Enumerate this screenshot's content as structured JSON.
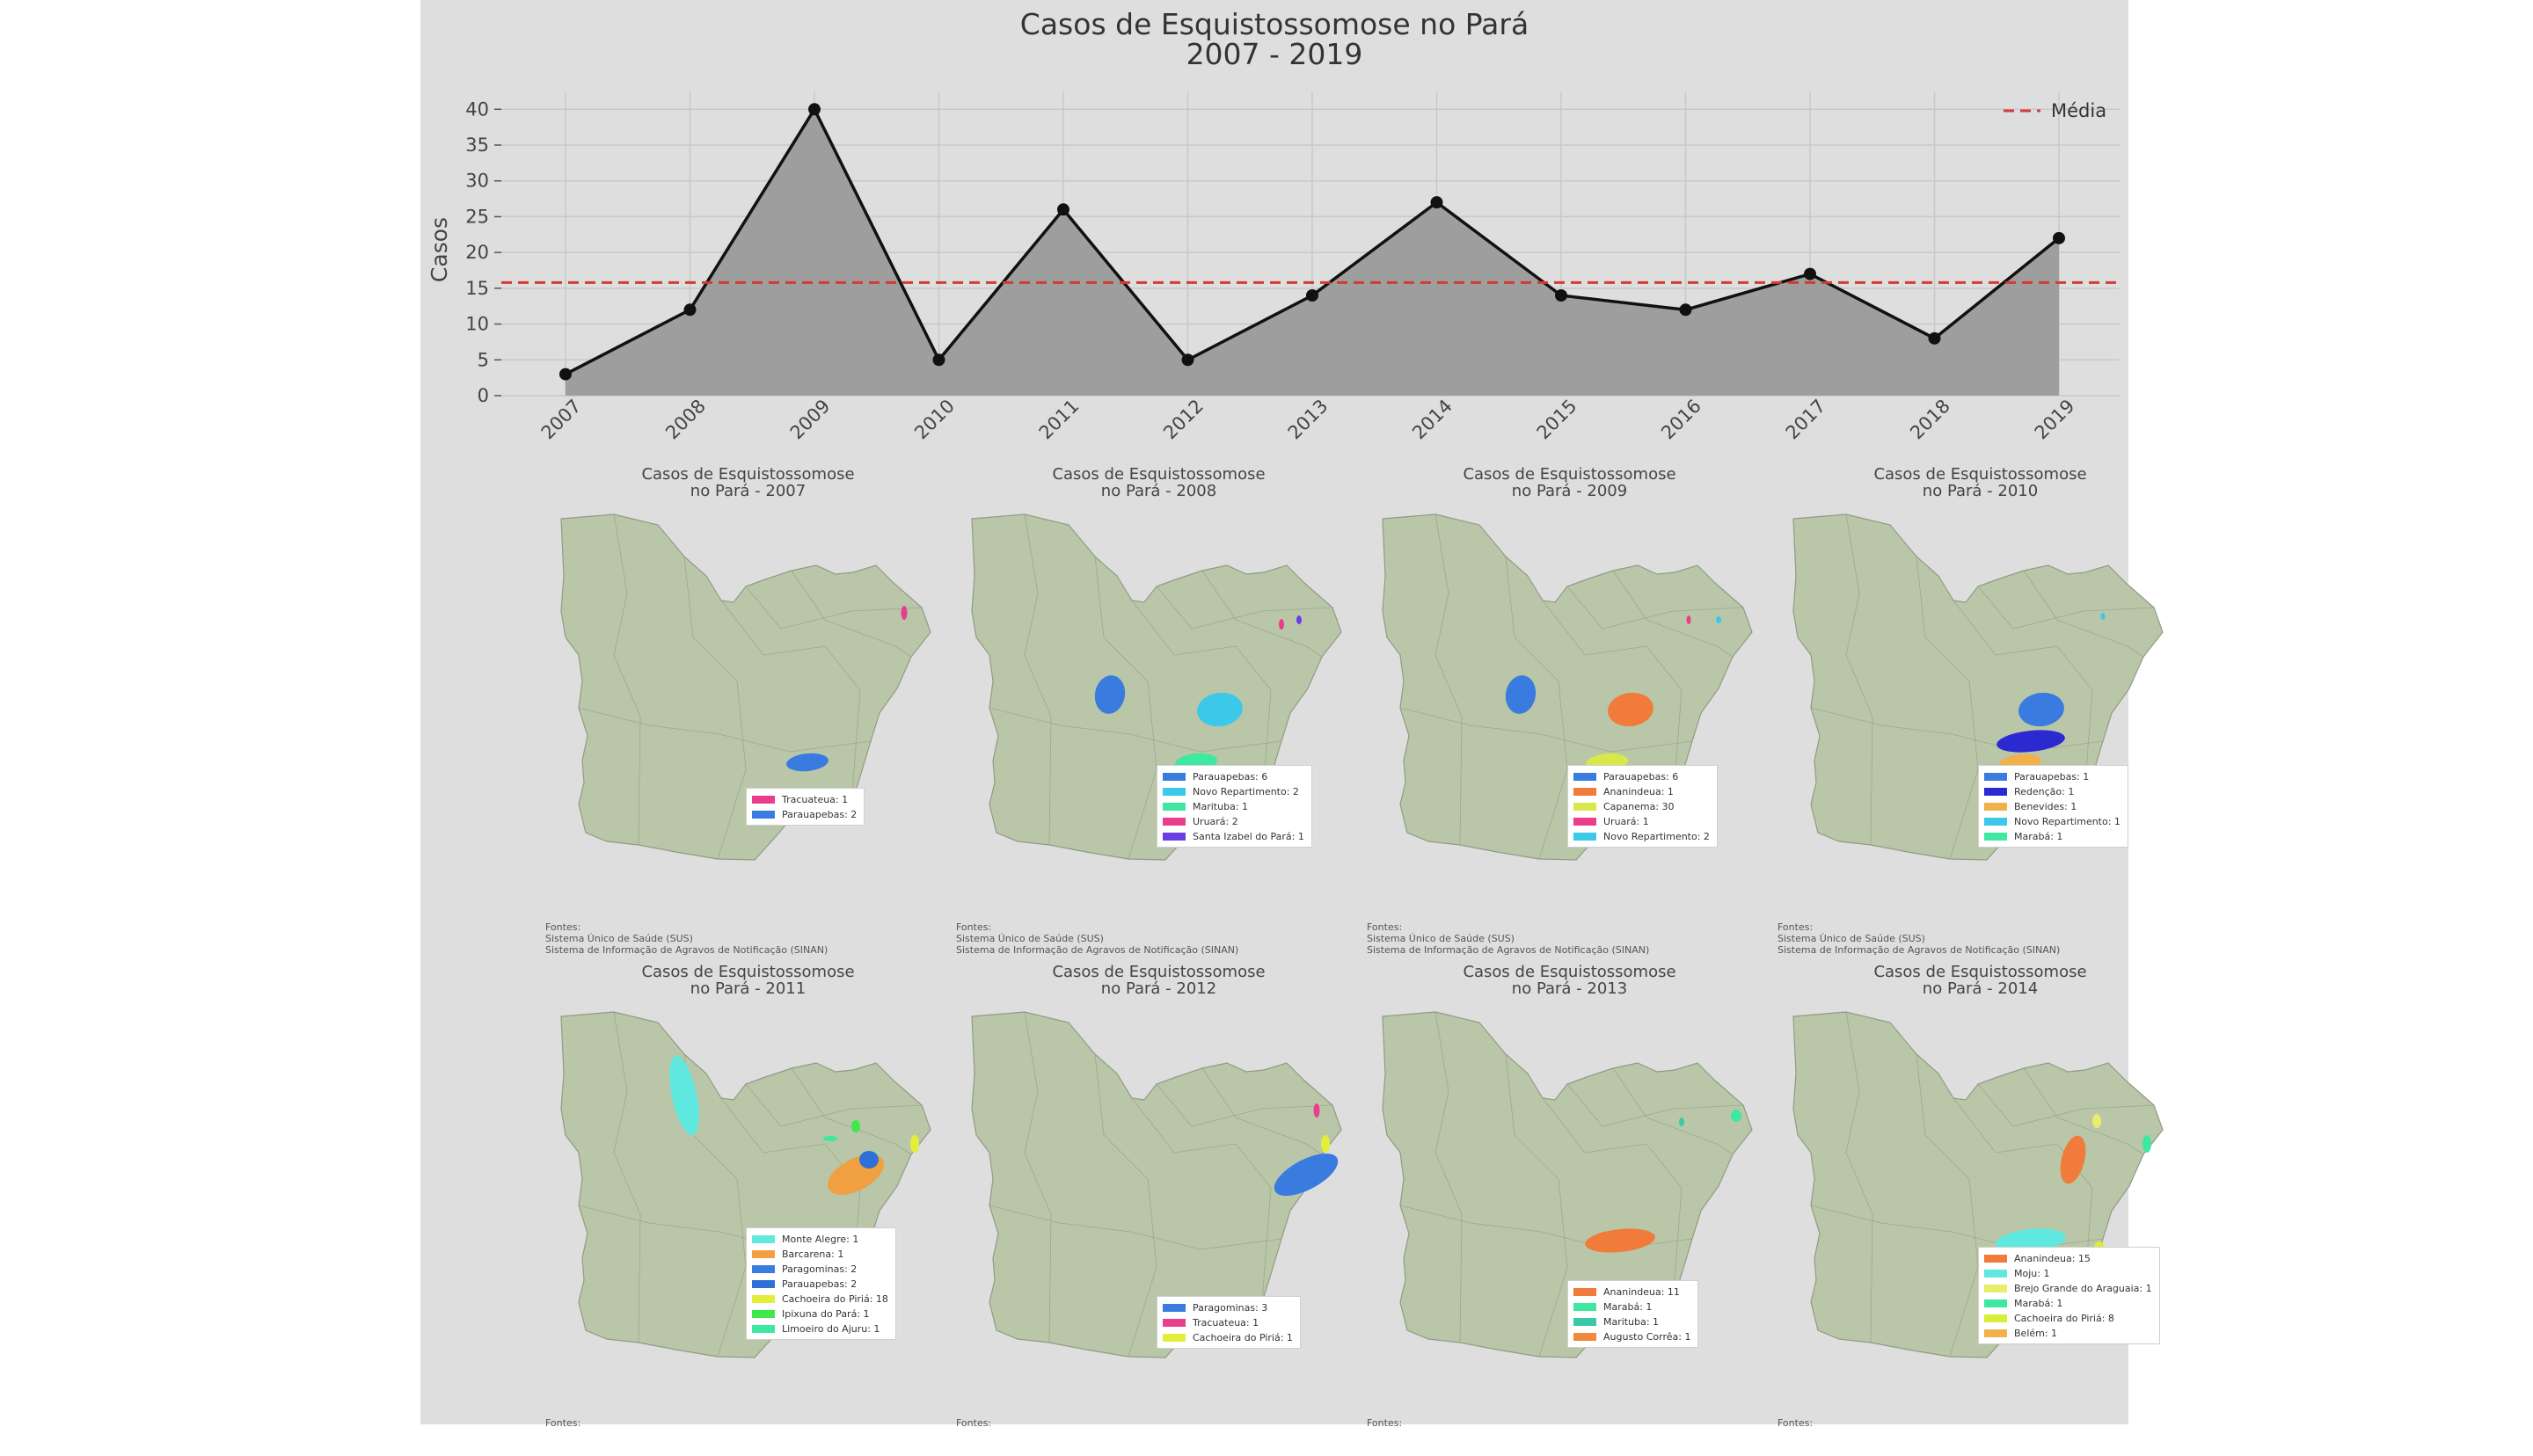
{
  "colors": {
    "figure_background": "#dedede",
    "area_fill": "#9e9e9e",
    "line": "#111111",
    "mean_line": "#d33a3a",
    "map_fill": "#b9c6a8",
    "map_border": "#8f9c85"
  },
  "chart_data": {
    "type": "area",
    "title": "Casos de Esquistossomose no Pará",
    "subtitle": "2007 - 2019",
    "ylabel": "Casos",
    "xlabel": "",
    "categories": [
      "2007",
      "2008",
      "2009",
      "2010",
      "2011",
      "2012",
      "2013",
      "2014",
      "2015",
      "2016",
      "2017",
      "2018",
      "2019"
    ],
    "values": [
      3,
      12,
      40,
      5,
      26,
      5,
      14,
      27,
      14,
      12,
      17,
      8,
      22
    ],
    "yticks": [
      "0",
      "5",
      "10",
      "15",
      "20",
      "25",
      "30",
      "35",
      "40"
    ],
    "ylim": [
      0,
      42
    ],
    "grid": true,
    "mean_value": 15.8,
    "legend": {
      "entries": [
        "Média"
      ],
      "placement": "top-right"
    }
  },
  "maps": [
    {
      "title1": "Casos de Esquistossomose",
      "title2": "no Pará - 2007",
      "legend": [
        {
          "label": "Tracuateua: 1",
          "color": "#e83e8c"
        },
        {
          "label": "Parauapebas: 2",
          "color": "#3a7be0"
        }
      ],
      "footer": [
        "Fontes:",
        "Sistema Único de Saúde (SUS)",
        "Sistema de Informação de Agravos de Notificação (SINAN)"
      ]
    },
    {
      "title1": "Casos de Esquistossomose",
      "title2": "no Pará - 2008",
      "legend": [
        {
          "label": "Parauapebas: 6",
          "color": "#3a7be0"
        },
        {
          "label": "Novo Repartimento: 2",
          "color": "#3cc8e8"
        },
        {
          "label": "Marituba: 1",
          "color": "#3ee8a0"
        },
        {
          "label": "Uruará: 2",
          "color": "#e83e8c"
        },
        {
          "label": "Santa Izabel do Pará: 1",
          "color": "#6a3ee0"
        }
      ],
      "footer": [
        "Fontes:",
        "Sistema Único de Saúde (SUS)",
        "Sistema de Informação de Agravos de Notificação (SINAN)"
      ]
    },
    {
      "title1": "Casos de Esquistossomose",
      "title2": "no Pará - 2009",
      "legend": [
        {
          "label": "Parauapebas: 6",
          "color": "#3a7be0"
        },
        {
          "label": "Ananindeua: 1",
          "color": "#f07b3a"
        },
        {
          "label": "Capanema: 30",
          "color": "#d8e84a"
        },
        {
          "label": "Uruará: 1",
          "color": "#e83e8c"
        },
        {
          "label": "Novo Repartimento: 2",
          "color": "#3cc8e8"
        }
      ],
      "footer": [
        "Fontes:",
        "Sistema Único de Saúde (SUS)",
        "Sistema de Informação de Agravos de Notificação (SINAN)"
      ]
    },
    {
      "title1": "Casos de Esquistossomose",
      "title2": "no Pará - 2010",
      "legend": [
        {
          "label": "Parauapebas: 1",
          "color": "#3a7be0"
        },
        {
          "label": "Redenção: 1",
          "color": "#2a2ad0"
        },
        {
          "label": "Benevides: 1",
          "color": "#f0b04a"
        },
        {
          "label": "Novo Repartimento: 1",
          "color": "#3cc8e8"
        },
        {
          "label": "Marabá: 1",
          "color": "#3ee8a0"
        }
      ],
      "footer": [
        "Fontes:",
        "Sistema Único de Saúde (SUS)",
        "Sistema de Informação de Agravos de Notificação (SINAN)"
      ]
    },
    {
      "title1": "Casos de Esquistossomose",
      "title2": "no Pará - 2011",
      "legend": [
        {
          "label": "Monte Alegre: 1",
          "color": "#5ee8e0"
        },
        {
          "label": "Barcarena: 1",
          "color": "#f0a040"
        },
        {
          "label": "Paragominas: 2",
          "color": "#3a7be0"
        },
        {
          "label": "Parauapebas: 2",
          "color": "#2f6fd8"
        },
        {
          "label": "Cachoeira do Piriá: 18",
          "color": "#e4ee3a"
        },
        {
          "label": "Ipixuna do Pará: 1",
          "color": "#3ee84a"
        },
        {
          "label": "Limoeiro do Ajuru: 1",
          "color": "#3ee8a0"
        }
      ],
      "footer": [
        "Fontes:"
      ]
    },
    {
      "title1": "Casos de Esquistossomose",
      "title2": "no Pará - 2012",
      "legend": [
        {
          "label": "Paragominas: 3",
          "color": "#3a7be0"
        },
        {
          "label": "Tracuateua: 1",
          "color": "#e83e8c"
        },
        {
          "label": "Cachoeira do Piriá: 1",
          "color": "#e4ee3a"
        }
      ],
      "footer": [
        "Fontes:"
      ]
    },
    {
      "title1": "Casos de Esquistossomose",
      "title2": "no Pará - 2013",
      "legend": [
        {
          "label": "Ananindeua: 11",
          "color": "#f07b3a"
        },
        {
          "label": "Marabá: 1",
          "color": "#3ee8a0"
        },
        {
          "label": "Marituba: 1",
          "color": "#3cc8a8"
        },
        {
          "label": "Augusto Corrêa: 1",
          "color": "#f08a3a"
        }
      ],
      "footer": [
        "Fontes:"
      ]
    },
    {
      "title1": "Casos de Esquistossomose",
      "title2": "no Pará - 2014",
      "legend": [
        {
          "label": "Ananindeua: 15",
          "color": "#f07b3a"
        },
        {
          "label": "Moju: 1",
          "color": "#5ee8e0"
        },
        {
          "label": "Brejo Grande do Araguaia: 1",
          "color": "#e8ee6a"
        },
        {
          "label": "Marabá: 1",
          "color": "#3ee8a0"
        },
        {
          "label": "Cachoeira do Piriá: 8",
          "color": "#d8ee3a"
        },
        {
          "label": "Belém: 1",
          "color": "#f0b04a"
        }
      ],
      "footer": [
        "Fontes:"
      ]
    }
  ]
}
